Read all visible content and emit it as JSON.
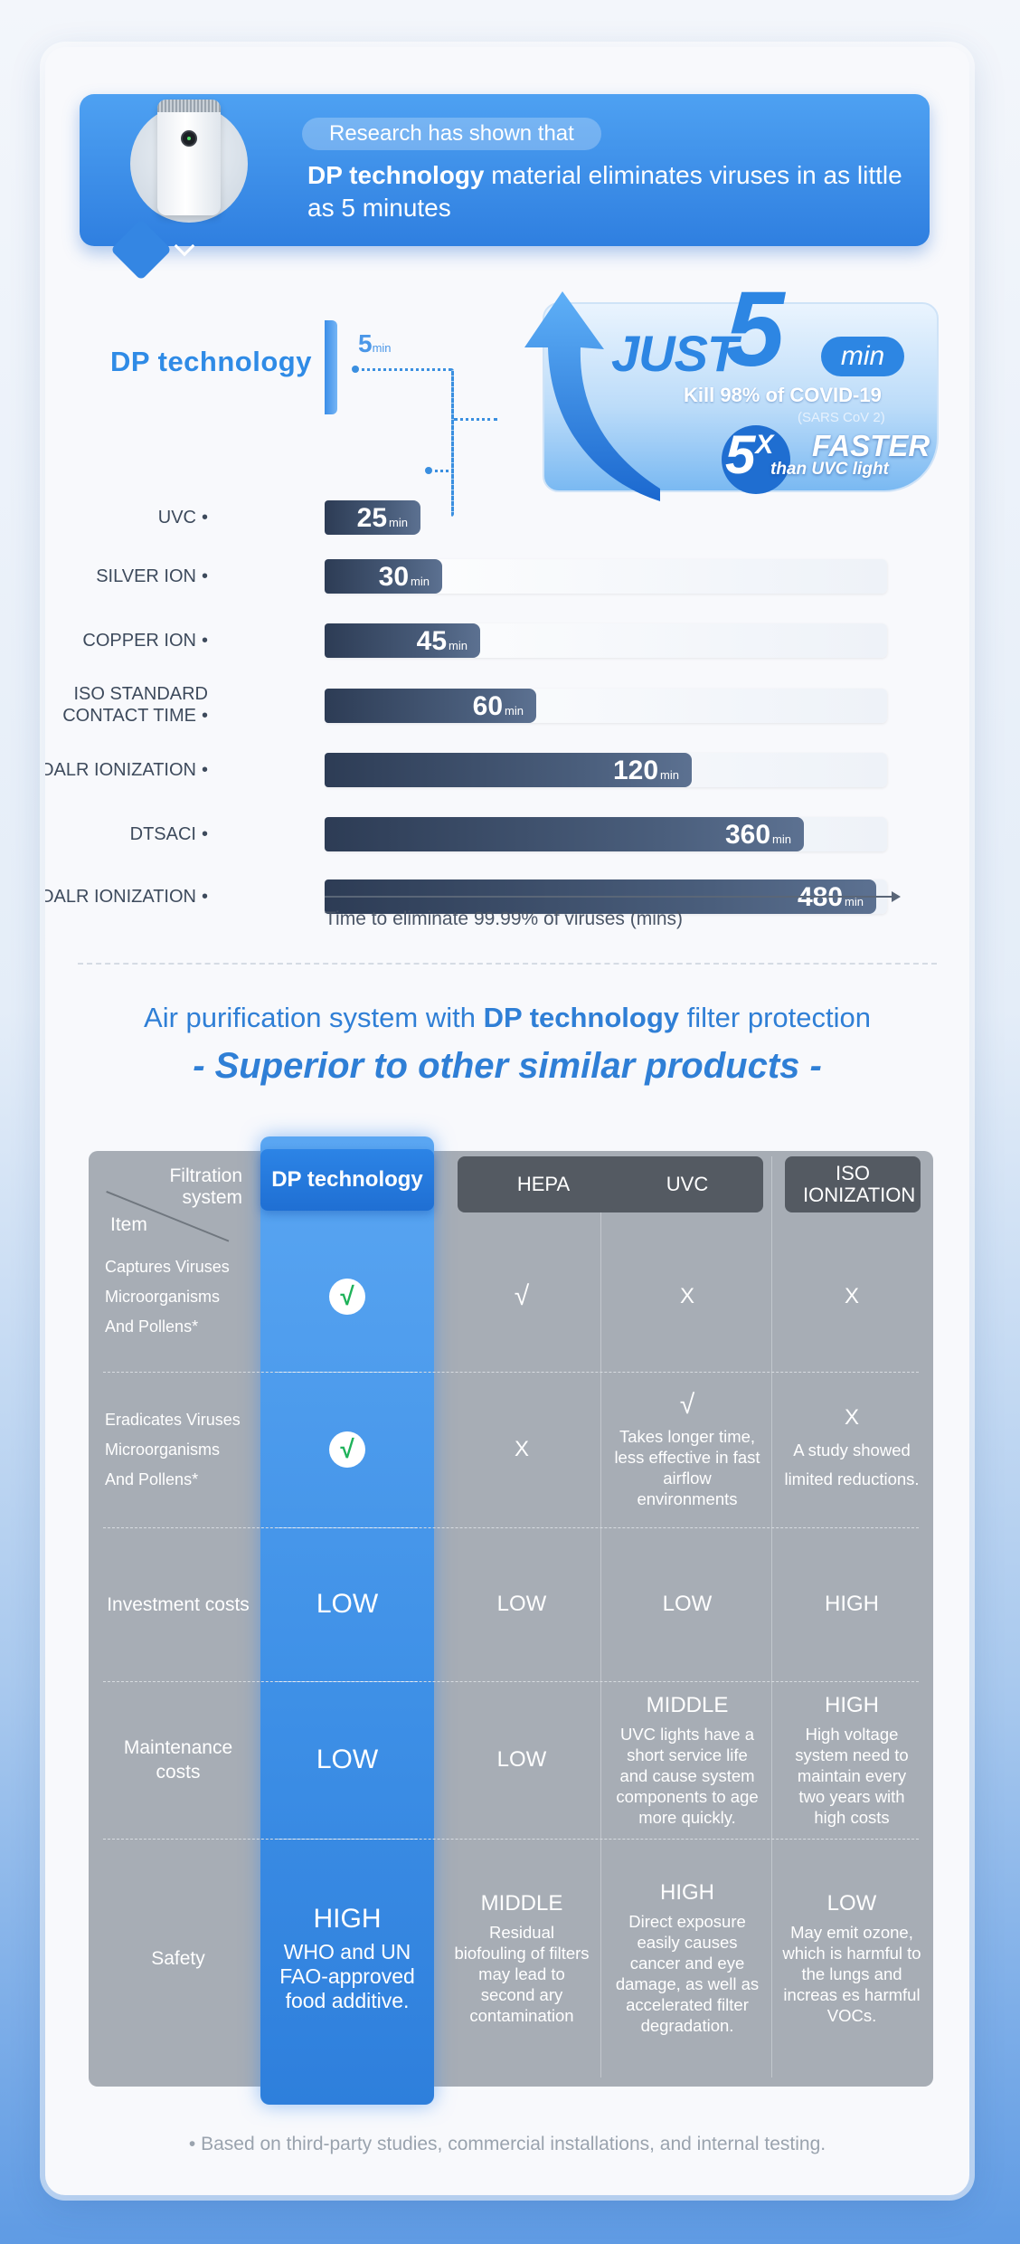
{
  "header": {
    "tagline": "Research has shown that",
    "headline_bold": "DP technology",
    "headline_rest": " material eliminates viruses in as little as 5 minutes",
    "product_icon": "air-purifier"
  },
  "comparison": {
    "dp_label": "DP technology",
    "dp_value": "5",
    "unit": "min",
    "axis_caption": "Time to eliminate 99.99% of viruses (mins)",
    "max_minutes": 480,
    "rows": [
      {
        "label_line1": "UVC",
        "label_line2": "",
        "value": 25
      },
      {
        "label_line1": "SILVER ION",
        "label_line2": "",
        "value": 30
      },
      {
        "label_line1": "COPPER ION",
        "label_line2": "",
        "value": 45
      },
      {
        "label_line1": "ISO STANDARD",
        "label_line2": "CONTACT TIME",
        "value": 60
      },
      {
        "label_line1": "BIPOALR IONIZATION",
        "label_line2": "",
        "value": 120
      },
      {
        "label_line1": "DTSACI",
        "label_line2": "",
        "value": 360
      },
      {
        "label_line1": "BIPOALR IONIZATION",
        "label_line2": "",
        "value": 480
      }
    ],
    "badge": {
      "just": "JUST",
      "five": "5",
      "min": "min",
      "kill": "Kill 98% of COVID-19",
      "sars": "(SARS CoV 2)",
      "multiplier": "5",
      "x": "X",
      "faster": "FASTER",
      "than": "than UVC light"
    }
  },
  "section": {
    "title_part1": "Air purification system with ",
    "title_bold": "DP technology",
    "title_part2": " filter protection",
    "subtitle": "- Superior to other similar products -"
  },
  "table": {
    "corner_top": "Filtration system",
    "corner_bottom": "Item",
    "columns": [
      "DP technology",
      "HEPA",
      "UVC",
      "ISO IONIZATION"
    ],
    "rows": [
      {
        "item": "Captures Viruses Microorganisms And Pollens*",
        "dp": "√",
        "hepa": "√",
        "uvc": "X",
        "uvc_note": "",
        "iso": "X",
        "iso_note": ""
      },
      {
        "item": "Eradicates Viruses Microorganisms And Pollens*",
        "dp": "√",
        "hepa": "X",
        "uvc": "√",
        "uvc_note": "Takes longer time, less effective in fast airflow environments",
        "iso": "X",
        "iso_note": "A study showed limited reductions."
      },
      {
        "item": "Investment costs",
        "dp": "LOW",
        "hepa": "LOW",
        "uvc": "LOW",
        "uvc_note": "",
        "iso": "HIGH",
        "iso_note": ""
      },
      {
        "item": "Maintenance costs",
        "dp": "LOW",
        "hepa": "LOW",
        "uvc": "MIDDLE",
        "uvc_note": "UVC lights have a short service life and cause system components to age more quickly.",
        "iso": "HIGH",
        "iso_note": "High voltage system need to maintain every two years with high costs"
      },
      {
        "item": "Safety",
        "dp": "HIGH",
        "dp_note": "WHO and UN FAO-approved food additive.",
        "hepa": "MIDDLE",
        "hepa_note": "Residual biofouling of filters may lead to second ary contamination",
        "uvc": "HIGH",
        "uvc_note": "Direct exposure easily causes cancer and eye damage, as well as accelerated filter degradation.",
        "iso": "LOW",
        "iso_note": "May emit ozone, which is harmful to the lungs and increas es harmful VOCs."
      }
    ]
  },
  "footnote": "• Based on third-party studies, commercial installations, and internal testing.",
  "colors": {
    "accent": "#2f7fd6",
    "bar_dark": "#2d3c55",
    "table_bg": "#a7adb5",
    "check_green": "#1fb25a"
  }
}
